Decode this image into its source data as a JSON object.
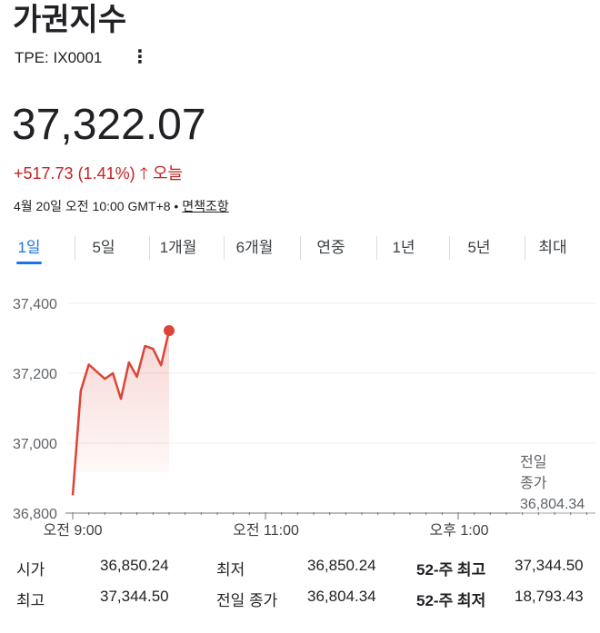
{
  "header": {
    "title": "가권지수",
    "ticker": "TPE: IX0001",
    "more_icon": "vertical-dots-icon"
  },
  "quote": {
    "price": "37,322.07",
    "change": "+517.73 (1.41%)",
    "direction_icon": "arrow-up-icon",
    "period": "오늘",
    "timestamp": "4월 20일 오전 10:00 GMT+8 • ",
    "disclaimer": "면책조항",
    "color": "#c5221f"
  },
  "tabs": [
    {
      "label": "1일",
      "active": true
    },
    {
      "label": "5일"
    },
    {
      "label": "1개월"
    },
    {
      "label": "6개월"
    },
    {
      "label": "연중"
    },
    {
      "label": "1년"
    },
    {
      "label": "5년"
    },
    {
      "label": "최대"
    }
  ],
  "chart_data": {
    "type": "area",
    "xlabel": "",
    "ylabel": "",
    "ylim": [
      36800,
      37400
    ],
    "grid": true,
    "yticks": [
      "37,400",
      "37,200",
      "37,000",
      "36,800"
    ],
    "xticks": [
      "오전 9:00",
      "오전 11:00",
      "오후 1:00"
    ],
    "x": [
      "9:00",
      "9:05",
      "9:10",
      "9:20",
      "9:25",
      "9:30",
      "9:35",
      "9:40",
      "9:45",
      "9:50",
      "9:55",
      "10:00"
    ],
    "values": [
      36851,
      37150,
      37225,
      37184,
      37200,
      37127,
      37231,
      37190,
      37278,
      37270,
      37223,
      37322
    ],
    "previous_close": {
      "label1": "전일",
      "label2": "종가",
      "value": "36,804.34",
      "level": 36804.34
    },
    "line_color": "#db4437"
  },
  "stats": [
    [
      {
        "k": "시가",
        "v": "36,850.24"
      },
      {
        "k": "최저",
        "v": "36,850.24"
      },
      {
        "k": "52-주 최고",
        "v": "37,344.50"
      }
    ],
    [
      {
        "k": "최고",
        "v": "37,344.50"
      },
      {
        "k": "전일 종가",
        "v": "36,804.34"
      },
      {
        "k": "52-주 최저",
        "v": "18,793.43"
      }
    ]
  ]
}
